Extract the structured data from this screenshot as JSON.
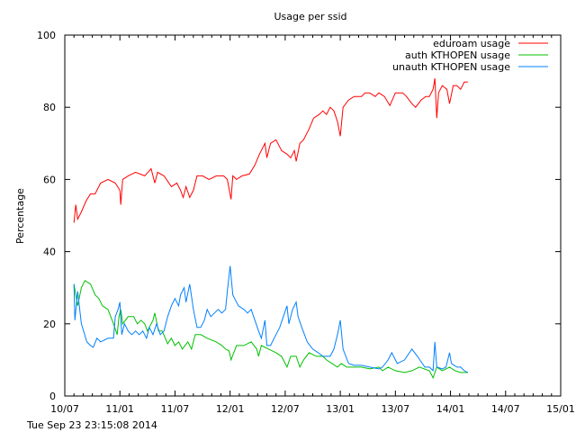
{
  "chart_data": {
    "type": "line",
    "title": "Usage per ssid",
    "xlabel": "",
    "ylabel": "Percentage",
    "timestamp": "Tue Sep 23 23:15:08 2014",
    "x_unit": "months since 2010-07",
    "xlim": [
      0,
      54
    ],
    "ylim": [
      0,
      100
    ],
    "grid": false,
    "legend_position": "top-right",
    "yticks": [
      {
        "v": 0,
        "label": "0"
      },
      {
        "v": 20,
        "label": "20"
      },
      {
        "v": 40,
        "label": "40"
      },
      {
        "v": 60,
        "label": "60"
      },
      {
        "v": 80,
        "label": "80"
      },
      {
        "v": 100,
        "label": "100"
      }
    ],
    "xticks": [
      {
        "v": 0,
        "label": "10/07"
      },
      {
        "v": 6,
        "label": "11/01"
      },
      {
        "v": 12,
        "label": "11/07"
      },
      {
        "v": 18,
        "label": "12/01"
      },
      {
        "v": 24,
        "label": "12/07"
      },
      {
        "v": 30,
        "label": "13/01"
      },
      {
        "v": 36,
        "label": "13/07"
      },
      {
        "v": 42,
        "label": "14/01"
      },
      {
        "v": 48,
        "label": "14/07"
      },
      {
        "v": 54,
        "label": "15/01"
      }
    ],
    "series": [
      {
        "name": "eduroam usage",
        "color": "#ff0000",
        "points": [
          [
            1.0,
            48
          ],
          [
            1.2,
            53
          ],
          [
            1.4,
            49
          ],
          [
            1.8,
            51
          ],
          [
            2.3,
            54
          ],
          [
            2.8,
            56
          ],
          [
            3.3,
            56
          ],
          [
            3.9,
            59
          ],
          [
            4.7,
            60
          ],
          [
            5.5,
            59
          ],
          [
            6.0,
            57
          ],
          [
            6.1,
            53
          ],
          [
            6.3,
            60
          ],
          [
            6.9,
            61
          ],
          [
            7.7,
            62
          ],
          [
            8.7,
            61
          ],
          [
            9.4,
            63
          ],
          [
            9.8,
            59
          ],
          [
            10.1,
            62
          ],
          [
            10.8,
            61
          ],
          [
            11.6,
            58
          ],
          [
            12.2,
            59
          ],
          [
            12.6,
            57
          ],
          [
            12.9,
            55
          ],
          [
            13.2,
            58
          ],
          [
            13.6,
            55
          ],
          [
            14.0,
            57
          ],
          [
            14.4,
            61
          ],
          [
            15.0,
            61
          ],
          [
            15.7,
            60
          ],
          [
            16.5,
            61
          ],
          [
            17.3,
            61
          ],
          [
            17.7,
            60
          ],
          [
            18.1,
            54.5
          ],
          [
            18.3,
            61
          ],
          [
            18.7,
            60
          ],
          [
            19.3,
            61
          ],
          [
            20.1,
            61.5
          ],
          [
            20.7,
            64
          ],
          [
            21.2,
            67
          ],
          [
            21.8,
            70
          ],
          [
            22.0,
            66
          ],
          [
            22.4,
            70
          ],
          [
            23.0,
            71
          ],
          [
            23.6,
            68
          ],
          [
            24.2,
            67
          ],
          [
            24.6,
            66
          ],
          [
            25.0,
            68
          ],
          [
            25.2,
            65
          ],
          [
            25.6,
            70
          ],
          [
            26.0,
            71
          ],
          [
            26.6,
            74
          ],
          [
            27.1,
            77
          ],
          [
            27.7,
            78
          ],
          [
            28.1,
            79
          ],
          [
            28.5,
            78
          ],
          [
            28.9,
            80
          ],
          [
            29.3,
            79
          ],
          [
            29.7,
            76
          ],
          [
            30.0,
            72
          ],
          [
            30.3,
            80
          ],
          [
            30.9,
            82
          ],
          [
            31.5,
            83
          ],
          [
            32.3,
            83
          ],
          [
            32.7,
            84
          ],
          [
            33.2,
            84
          ],
          [
            33.8,
            83
          ],
          [
            34.2,
            84
          ],
          [
            34.8,
            83
          ],
          [
            35.4,
            80.5
          ],
          [
            36.0,
            84
          ],
          [
            36.8,
            84
          ],
          [
            37.2,
            83
          ],
          [
            37.8,
            81
          ],
          [
            38.2,
            80
          ],
          [
            38.8,
            82
          ],
          [
            39.3,
            83
          ],
          [
            39.7,
            83
          ],
          [
            40.1,
            85
          ],
          [
            40.3,
            88
          ],
          [
            40.5,
            77
          ],
          [
            40.7,
            84
          ],
          [
            41.1,
            86
          ],
          [
            41.6,
            85
          ],
          [
            41.9,
            81
          ],
          [
            42.3,
            86
          ],
          [
            42.7,
            86
          ],
          [
            43.1,
            85
          ],
          [
            43.5,
            87
          ],
          [
            43.9,
            87
          ]
        ]
      },
      {
        "name": "auth KTHOPEN usage",
        "color": "#00c000",
        "points": [
          [
            1.0,
            31
          ],
          [
            1.4,
            25
          ],
          [
            1.8,
            30
          ],
          [
            2.2,
            32
          ],
          [
            2.8,
            31
          ],
          [
            3.3,
            28
          ],
          [
            3.7,
            27
          ],
          [
            4.1,
            25
          ],
          [
            4.7,
            24
          ],
          [
            5.3,
            20
          ],
          [
            5.7,
            17
          ],
          [
            5.9,
            22
          ],
          [
            6.1,
            24
          ],
          [
            6.3,
            20
          ],
          [
            6.9,
            22
          ],
          [
            7.5,
            22
          ],
          [
            7.9,
            20
          ],
          [
            8.3,
            21
          ],
          [
            8.7,
            20
          ],
          [
            9.0,
            18
          ],
          [
            9.6,
            21
          ],
          [
            9.8,
            23
          ],
          [
            10.2,
            18
          ],
          [
            10.6,
            18
          ],
          [
            11.2,
            14.5
          ],
          [
            11.6,
            16
          ],
          [
            12.0,
            14
          ],
          [
            12.4,
            15
          ],
          [
            12.8,
            13
          ],
          [
            13.4,
            15
          ],
          [
            13.8,
            13
          ],
          [
            14.2,
            17
          ],
          [
            14.8,
            17
          ],
          [
            15.5,
            16
          ],
          [
            16.5,
            15
          ],
          [
            17.1,
            14
          ],
          [
            17.5,
            13
          ],
          [
            17.9,
            12.5
          ],
          [
            18.1,
            10
          ],
          [
            18.7,
            14
          ],
          [
            19.5,
            14
          ],
          [
            20.3,
            15
          ],
          [
            20.9,
            13
          ],
          [
            21.1,
            11
          ],
          [
            21.4,
            14
          ],
          [
            22.2,
            13
          ],
          [
            23.0,
            12
          ],
          [
            23.6,
            11
          ],
          [
            24.2,
            8
          ],
          [
            24.6,
            11
          ],
          [
            25.2,
            11
          ],
          [
            25.6,
            8
          ],
          [
            26.0,
            10
          ],
          [
            26.6,
            12
          ],
          [
            27.4,
            11
          ],
          [
            28.1,
            11
          ],
          [
            28.5,
            10
          ],
          [
            29.1,
            9
          ],
          [
            29.7,
            8
          ],
          [
            30.1,
            9
          ],
          [
            30.7,
            8
          ],
          [
            31.5,
            8
          ],
          [
            32.3,
            8
          ],
          [
            33.2,
            7.5
          ],
          [
            34.2,
            8
          ],
          [
            34.6,
            7
          ],
          [
            35.2,
            8
          ],
          [
            36.0,
            7
          ],
          [
            37.0,
            6.5
          ],
          [
            37.8,
            7
          ],
          [
            38.6,
            8
          ],
          [
            39.7,
            7
          ],
          [
            40.1,
            5
          ],
          [
            40.5,
            8
          ],
          [
            41.1,
            7
          ],
          [
            41.9,
            8
          ],
          [
            42.5,
            7
          ],
          [
            43.1,
            6.5
          ],
          [
            43.9,
            6.5
          ]
        ]
      },
      {
        "name": "unauth KTHOPEN usage",
        "color": "#0080ff",
        "points": [
          [
            1.0,
            31
          ],
          [
            1.1,
            21
          ],
          [
            1.4,
            29
          ],
          [
            1.8,
            20
          ],
          [
            2.4,
            15
          ],
          [
            2.8,
            14
          ],
          [
            3.1,
            13.5
          ],
          [
            3.5,
            16
          ],
          [
            3.9,
            15
          ],
          [
            4.7,
            16
          ],
          [
            5.3,
            16
          ],
          [
            5.5,
            22
          ],
          [
            5.8,
            24
          ],
          [
            6.0,
            26
          ],
          [
            6.2,
            17
          ],
          [
            6.5,
            20
          ],
          [
            6.9,
            18
          ],
          [
            7.3,
            17
          ],
          [
            7.7,
            18
          ],
          [
            8.1,
            17
          ],
          [
            8.5,
            18
          ],
          [
            8.9,
            16
          ],
          [
            9.2,
            19
          ],
          [
            9.6,
            17
          ],
          [
            10.0,
            20
          ],
          [
            10.4,
            17
          ],
          [
            10.8,
            18
          ],
          [
            11.2,
            22
          ],
          [
            11.6,
            25
          ],
          [
            12.0,
            27
          ],
          [
            12.4,
            25
          ],
          [
            12.6,
            28
          ],
          [
            13.0,
            30
          ],
          [
            13.2,
            26
          ],
          [
            13.6,
            31
          ],
          [
            14.0,
            24
          ],
          [
            14.4,
            19
          ],
          [
            14.8,
            19
          ],
          [
            15.2,
            21
          ],
          [
            15.5,
            24
          ],
          [
            15.9,
            22
          ],
          [
            16.3,
            23
          ],
          [
            16.7,
            24
          ],
          [
            17.1,
            23
          ],
          [
            17.5,
            24
          ],
          [
            17.7,
            29
          ],
          [
            18.0,
            36
          ],
          [
            18.3,
            28
          ],
          [
            18.9,
            25
          ],
          [
            19.5,
            24
          ],
          [
            19.9,
            23
          ],
          [
            20.3,
            24
          ],
          [
            20.7,
            21
          ],
          [
            21.1,
            18
          ],
          [
            21.4,
            16
          ],
          [
            21.8,
            21
          ],
          [
            22.0,
            14
          ],
          [
            22.4,
            14
          ],
          [
            22.8,
            16
          ],
          [
            23.4,
            19
          ],
          [
            23.8,
            22
          ],
          [
            24.2,
            25
          ],
          [
            24.4,
            20
          ],
          [
            24.8,
            24
          ],
          [
            25.2,
            26
          ],
          [
            25.4,
            22
          ],
          [
            25.8,
            19
          ],
          [
            26.4,
            15
          ],
          [
            27.0,
            13
          ],
          [
            27.6,
            12
          ],
          [
            28.1,
            11
          ],
          [
            28.5,
            11
          ],
          [
            28.9,
            11
          ],
          [
            29.3,
            13
          ],
          [
            29.7,
            17
          ],
          [
            30.0,
            21
          ],
          [
            30.3,
            13
          ],
          [
            30.9,
            9
          ],
          [
            31.5,
            8.5
          ],
          [
            32.3,
            8.5
          ],
          [
            33.2,
            8
          ],
          [
            34.2,
            7.5
          ],
          [
            34.6,
            8
          ],
          [
            35.2,
            10
          ],
          [
            35.6,
            12
          ],
          [
            36.2,
            9
          ],
          [
            37.0,
            10
          ],
          [
            37.8,
            13
          ],
          [
            38.4,
            11
          ],
          [
            39.2,
            8
          ],
          [
            39.7,
            8
          ],
          [
            40.1,
            7
          ],
          [
            40.3,
            15
          ],
          [
            40.5,
            8
          ],
          [
            41.1,
            7.5
          ],
          [
            41.5,
            8
          ],
          [
            41.9,
            12
          ],
          [
            42.1,
            9
          ],
          [
            42.7,
            8
          ],
          [
            43.1,
            8
          ],
          [
            43.5,
            7
          ],
          [
            43.9,
            6.5
          ]
        ]
      }
    ]
  }
}
